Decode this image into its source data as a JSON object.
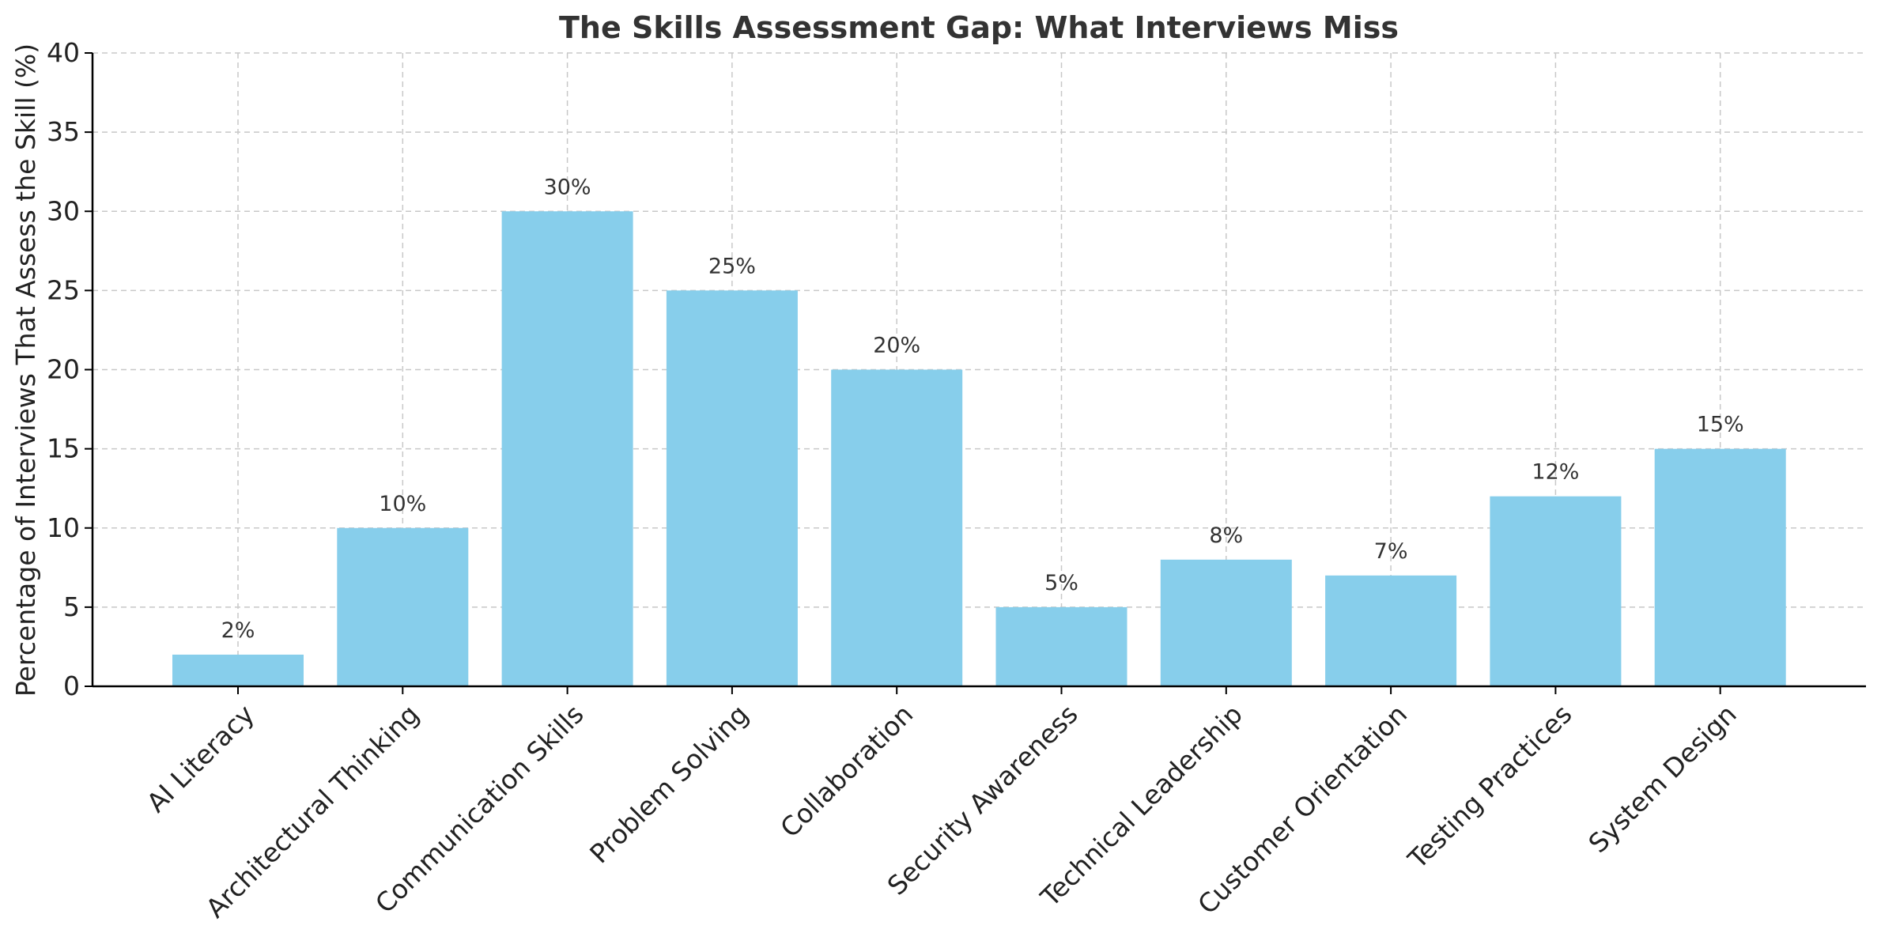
{
  "chart_data": {
    "type": "bar",
    "title": "The Skills Assessment Gap: What Interviews Miss",
    "xlabel": "",
    "ylabel": "Percentage of Interviews That Assess the Skill (%)",
    "categories": [
      "AI Literacy",
      "Architectural Thinking",
      "Communication Skills",
      "Problem Solving",
      "Collaboration",
      "Security Awareness",
      "Technical Leadership",
      "Customer Orientation",
      "Testing Practices",
      "System Design"
    ],
    "values": [
      2,
      10,
      30,
      25,
      20,
      5,
      8,
      7,
      12,
      15
    ],
    "data_labels": [
      "2%",
      "10%",
      "30%",
      "25%",
      "20%",
      "5%",
      "8%",
      "7%",
      "12%",
      "15%"
    ],
    "ylim": [
      0,
      40
    ],
    "yticks": [
      0,
      5,
      10,
      15,
      20,
      25,
      30,
      35,
      40
    ],
    "grid": true,
    "bar_color": "#87CEEB"
  }
}
